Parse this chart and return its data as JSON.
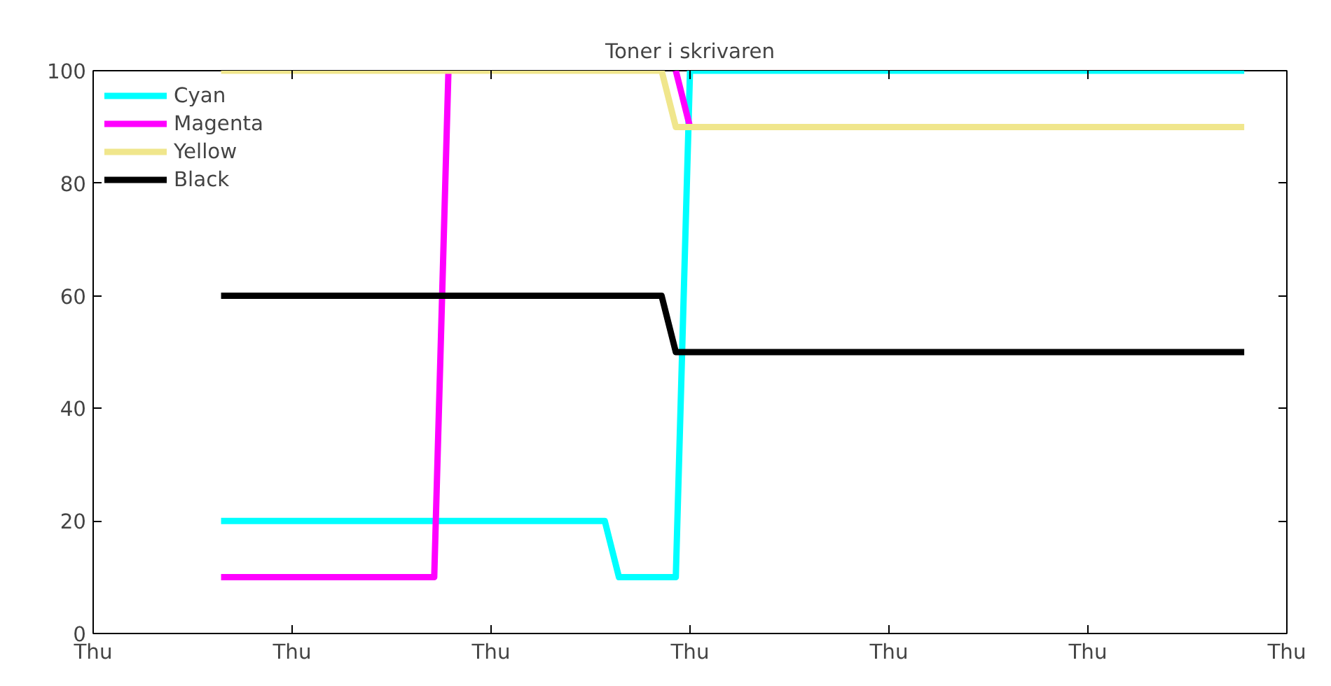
{
  "chart_data": {
    "type": "line",
    "title": "Toner i skrivaren",
    "categories": [
      "Thu",
      null,
      null,
      null,
      null,
      null,
      null,
      null,
      null,
      null,
      null,
      null,
      null,
      null,
      "Thu",
      null,
      null,
      null,
      null,
      null,
      null,
      null,
      null,
      null,
      null,
      null,
      null,
      null,
      "Thu",
      null,
      null,
      null,
      null,
      null,
      null,
      null,
      null,
      null,
      null,
      null,
      null,
      null,
      "Thu",
      null,
      null,
      null,
      null,
      null,
      null,
      null,
      null,
      null,
      null,
      null,
      null,
      null,
      "Thu",
      null,
      null,
      null,
      null,
      null,
      null,
      null,
      null,
      null,
      null,
      null,
      null,
      null,
      "Thu",
      null,
      null,
      null,
      null,
      null,
      null,
      null,
      null,
      null,
      null,
      null,
      null,
      null,
      "Thu"
    ],
    "ylim": [
      0,
      100
    ],
    "yticks": [
      0,
      20,
      40,
      60,
      80,
      100
    ],
    "legend": "top left",
    "line_style": "solid",
    "series": [
      {
        "name": "Cyan",
        "color": "#00ffff",
        "values": [
          null,
          null,
          null,
          null,
          null,
          null,
          null,
          null,
          null,
          20,
          20,
          20,
          20,
          20,
          20,
          20,
          20,
          20,
          20,
          20,
          20,
          20,
          20,
          20,
          20,
          20,
          20,
          20,
          20,
          20,
          20,
          20,
          20,
          20,
          20,
          20,
          20,
          10,
          10,
          10,
          10,
          10,
          100,
          100,
          100,
          100,
          100,
          100,
          100,
          100,
          100,
          100,
          100,
          100,
          100,
          100,
          100,
          100,
          100,
          100,
          100,
          100,
          100,
          100,
          100,
          100,
          100,
          100,
          100,
          100,
          100,
          100,
          100,
          100,
          100,
          100,
          100,
          100,
          100,
          100,
          100,
          100,
          null,
          null,
          null
        ]
      },
      {
        "name": "Magenta",
        "color": "#ff00ff",
        "values": [
          null,
          null,
          null,
          null,
          null,
          null,
          null,
          null,
          null,
          10,
          10,
          10,
          10,
          10,
          10,
          10,
          10,
          10,
          10,
          10,
          10,
          10,
          10,
          10,
          10,
          100,
          null,
          null,
          null,
          null,
          null,
          null,
          null,
          null,
          null,
          null,
          null,
          null,
          null,
          null,
          null,
          100,
          90,
          null,
          null,
          null,
          null,
          null,
          null,
          null,
          null,
          null,
          null,
          null,
          null,
          null,
          null,
          null,
          null,
          null,
          null,
          null,
          null,
          null,
          null,
          null,
          null,
          null,
          null,
          null,
          null,
          null,
          null,
          null,
          null,
          null,
          null,
          null,
          null,
          null,
          null,
          null,
          null,
          null,
          null
        ]
      },
      {
        "name": "Yellow",
        "color": "#f0e68c",
        "values": [
          null,
          null,
          null,
          null,
          null,
          null,
          null,
          null,
          null,
          100,
          100,
          100,
          100,
          100,
          100,
          100,
          100,
          100,
          100,
          100,
          100,
          100,
          100,
          100,
          100,
          100,
          100,
          100,
          100,
          100,
          100,
          100,
          100,
          100,
          100,
          100,
          100,
          100,
          100,
          100,
          100,
          90,
          90,
          90,
          90,
          90,
          90,
          90,
          90,
          90,
          90,
          90,
          90,
          90,
          90,
          90,
          90,
          90,
          90,
          90,
          90,
          90,
          90,
          90,
          90,
          90,
          90,
          90,
          90,
          90,
          90,
          90,
          90,
          90,
          90,
          90,
          90,
          90,
          90,
          90,
          90,
          90,
          null,
          null,
          null
        ]
      },
      {
        "name": "Black",
        "color": "#000000",
        "values": [
          null,
          null,
          null,
          null,
          null,
          null,
          null,
          null,
          null,
          60,
          60,
          60,
          60,
          60,
          60,
          60,
          60,
          60,
          60,
          60,
          60,
          60,
          60,
          60,
          60,
          60,
          60,
          60,
          60,
          60,
          60,
          60,
          60,
          60,
          60,
          60,
          60,
          60,
          60,
          60,
          60,
          50,
          50,
          50,
          50,
          50,
          50,
          50,
          50,
          50,
          50,
          50,
          50,
          50,
          50,
          50,
          50,
          50,
          50,
          50,
          50,
          50,
          50,
          50,
          50,
          50,
          50,
          50,
          50,
          50,
          50,
          50,
          50,
          50,
          50,
          50,
          50,
          50,
          50,
          50,
          50,
          50,
          null,
          null,
          null
        ]
      }
    ]
  }
}
